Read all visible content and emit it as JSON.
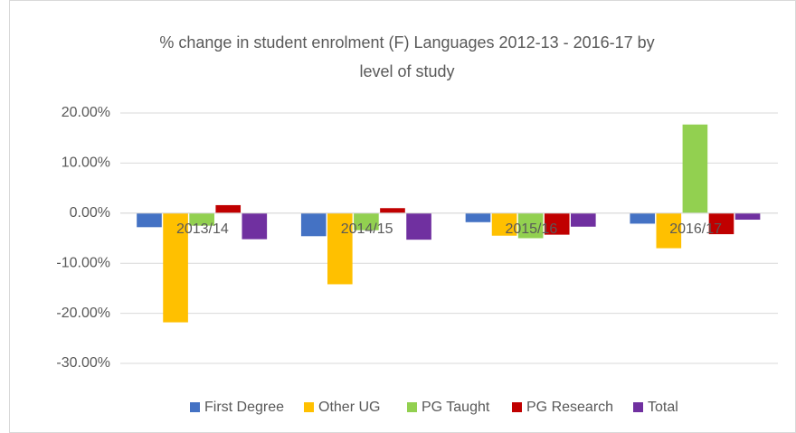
{
  "chart_data": {
    "type": "bar",
    "title": [
      "% change in student enrolment (F) Languages 2012-13 - 2016-17 by",
      "level of study"
    ],
    "categories": [
      "2013/14",
      "2014/15",
      "2015/16",
      "2016/17"
    ],
    "series": [
      {
        "name": "First Degree",
        "color": "#4472c4",
        "values": [
          -2.8,
          -4.6,
          -1.8,
          -2.1
        ]
      },
      {
        "name": "Other UG",
        "color": "#ffc000",
        "values": [
          -21.8,
          -14.2,
          -4.5,
          -7.0
        ]
      },
      {
        "name": "PG Taught",
        "color": "#92d050",
        "values": [
          -2.5,
          -3.4,
          -5.0,
          17.7
        ]
      },
      {
        "name": "PG Research",
        "color": "#c00000",
        "values": [
          1.6,
          1.0,
          -4.3,
          -4.2
        ]
      },
      {
        "name": "Total",
        "color": "#7030a0",
        "values": [
          -5.2,
          -5.3,
          -2.7,
          -1.3
        ]
      }
    ],
    "ylim": [
      -30,
      20
    ],
    "yticks": [
      {
        "value": 20,
        "label": "20.00%"
      },
      {
        "value": 10,
        "label": "10.00%"
      },
      {
        "value": 0,
        "label": "0.00%"
      },
      {
        "value": -10,
        "label": "-10.00%"
      },
      {
        "value": -20,
        "label": "-20.00%"
      },
      {
        "value": -30,
        "label": "-30.00%"
      }
    ],
    "grid": true,
    "legend": "bottom"
  }
}
